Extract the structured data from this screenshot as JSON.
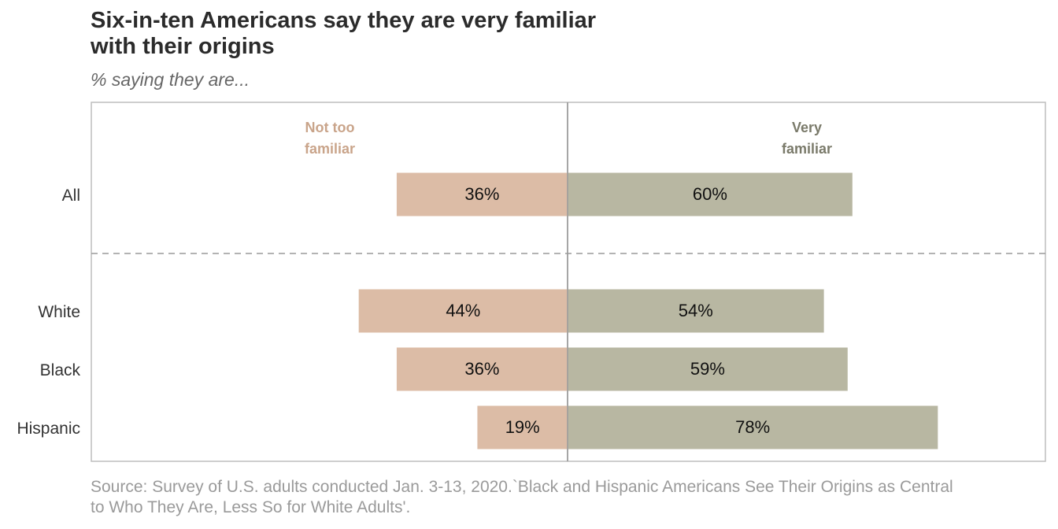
{
  "chart_data": {
    "type": "bar",
    "title": "Six-in-ten Americans say they are very familiar with their origins",
    "subtitle": "% saying they are...",
    "categories": [
      "All",
      "White",
      "Black",
      "Hispanic"
    ],
    "series": [
      {
        "name": "Not too familiar",
        "name_lines": [
          "Not too",
          "familiar"
        ],
        "values": [
          36,
          44,
          36,
          19
        ],
        "color": "#dcbca6",
        "label_color": "#c9a48a"
      },
      {
        "name": "Very familiar",
        "name_lines": [
          "Very",
          "familiar"
        ],
        "values": [
          60,
          54,
          59,
          78
        ],
        "color": "#b8b7a2",
        "label_color": "#7a7a6a"
      }
    ],
    "value_suffix": "%",
    "layout": "diverging",
    "grid": false,
    "source": "Source: Survey of U.S. adults conducted Jan. 3-13, 2020.`Black and Hispanic Americans See Their Origins as Central to Who They Are, Less So for White Adults'."
  }
}
